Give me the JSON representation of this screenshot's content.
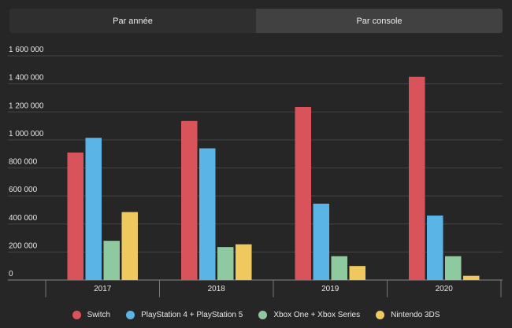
{
  "tabs": [
    {
      "label": "Par année",
      "active": true
    },
    {
      "label": "Par console",
      "active": false
    }
  ],
  "chart_data": {
    "type": "bar",
    "title": "",
    "xlabel": "",
    "ylabel": "",
    "categories": [
      "2017",
      "2018",
      "2019",
      "2020"
    ],
    "ylim": [
      0,
      1600000
    ],
    "yticks": [
      0,
      200000,
      400000,
      600000,
      800000,
      1000000,
      1200000,
      1400000,
      1600000
    ],
    "ytick_labels": [
      "0",
      "200 000",
      "400 000",
      "600 000",
      "800 000",
      "1 000 000",
      "1 200 000",
      "1 400 000",
      "1 600 000"
    ],
    "grid": true,
    "legend_position": "bottom",
    "series": [
      {
        "name": "Switch",
        "color": "#d9535a",
        "values": [
          910000,
          1135000,
          1235000,
          1450000
        ]
      },
      {
        "name": "PlayStation 4 + PlayStation 5",
        "color": "#5ab4e5",
        "values": [
          1015000,
          940000,
          545000,
          460000
        ]
      },
      {
        "name": "Xbox One + Xbox Series",
        "color": "#8fc9a0",
        "values": [
          280000,
          235000,
          170000,
          170000
        ]
      },
      {
        "name": "Nintendo 3DS",
        "color": "#f0c95e",
        "values": [
          485000,
          255000,
          100000,
          30000
        ]
      }
    ]
  }
}
